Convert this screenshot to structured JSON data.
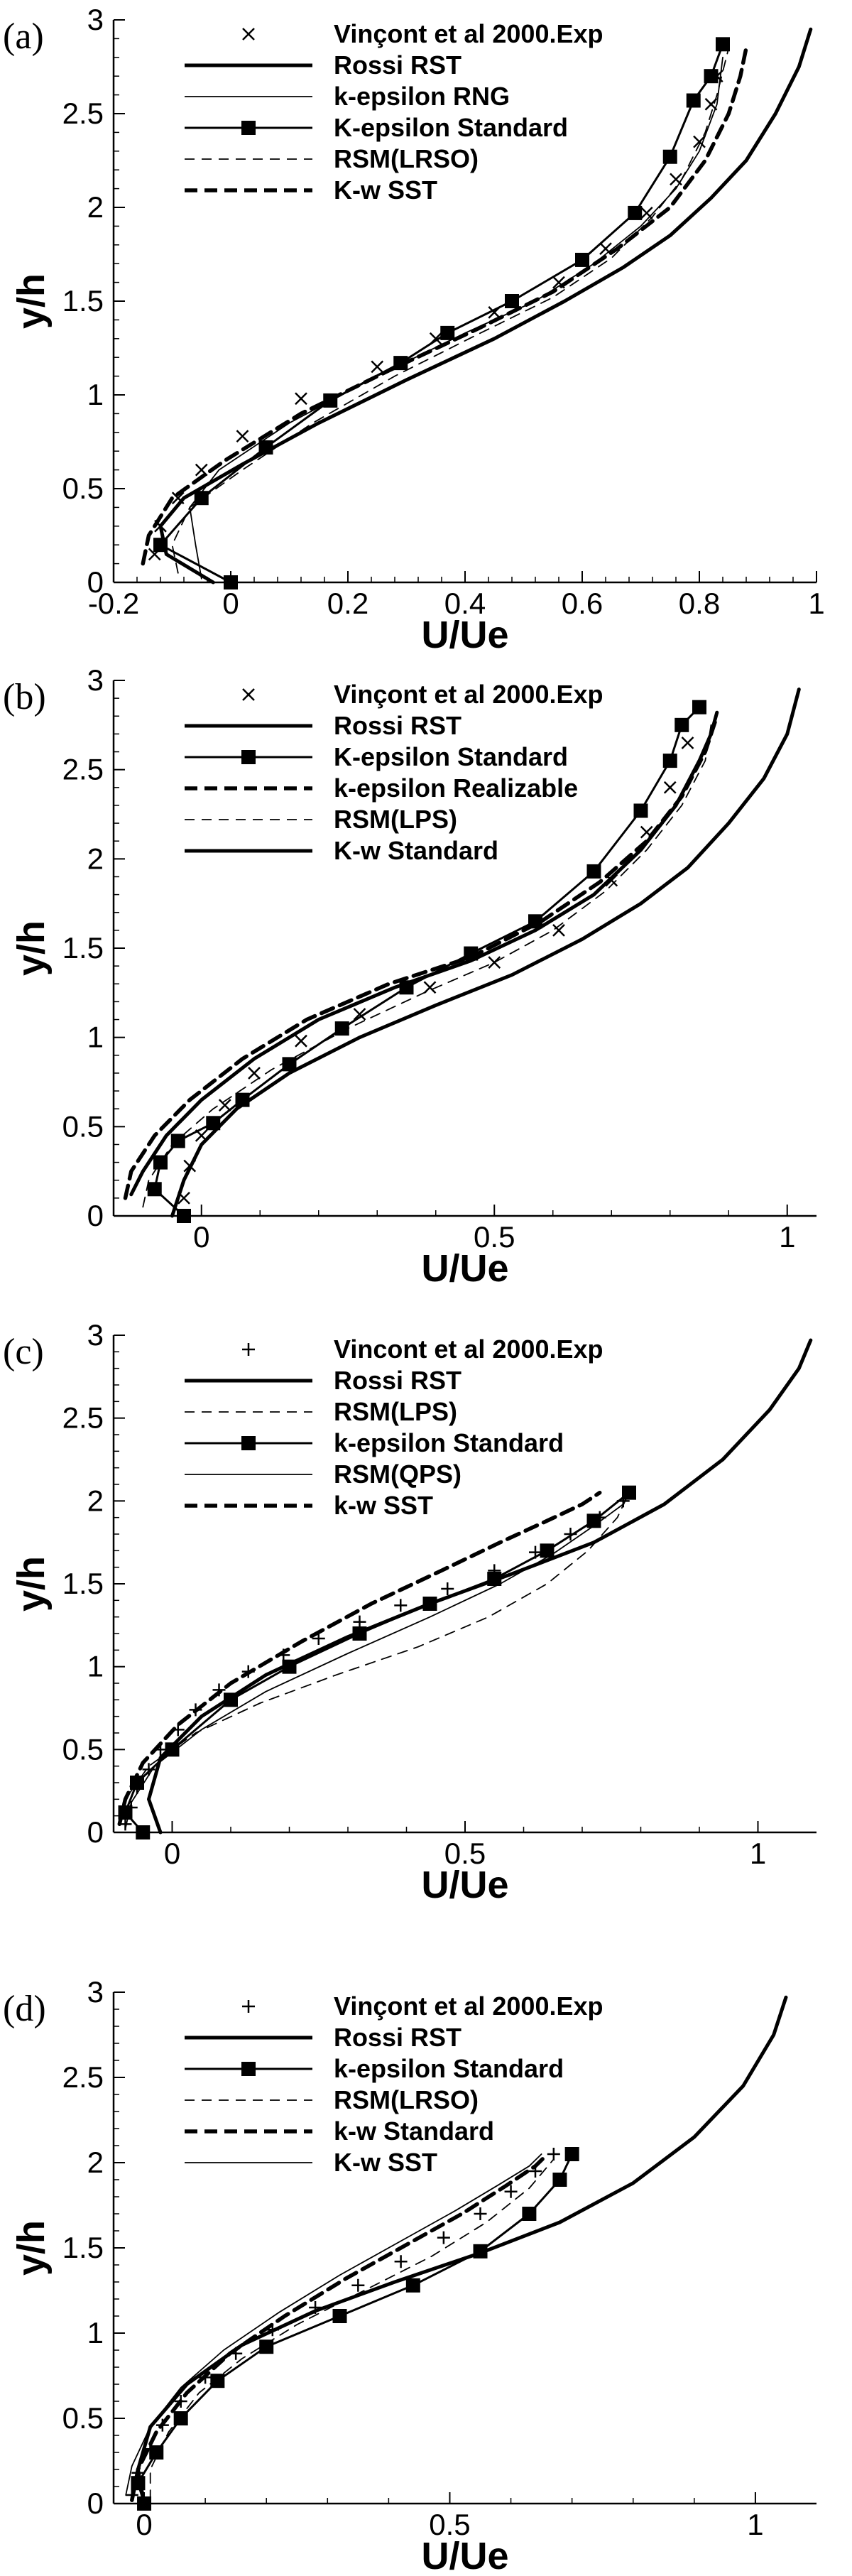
{
  "chart_data": [
    {
      "type": "line",
      "panel_label": "(a)",
      "xlabel": "U/Ue",
      "ylabel": "y/h",
      "xlim": [
        -0.2,
        1.0
      ],
      "ylim": [
        0,
        3
      ],
      "xticks": [
        -0.2,
        0,
        0.2,
        0.4,
        0.6,
        0.8,
        1
      ],
      "xtick_labels": [
        "-0.2",
        "0",
        "0.2",
        "0.4",
        "0.6",
        "0.8",
        "1"
      ],
      "yticks": [
        0,
        0.5,
        1,
        1.5,
        2,
        2.5,
        3
      ],
      "ytick_labels": [
        "0",
        "0.5",
        "1",
        "1.5",
        "2",
        "2.5",
        "3"
      ],
      "legend_position": "top",
      "series": [
        {
          "name": "Vinçont et al 2000.Exp",
          "style": "marker-x",
          "x": [
            -0.13,
            -0.12,
            -0.09,
            -0.05,
            0.02,
            0.12,
            0.25,
            0.35,
            0.45,
            0.56,
            0.64,
            0.71,
            0.76,
            0.8,
            0.82,
            0.83
          ],
          "y": [
            0.15,
            0.3,
            0.45,
            0.6,
            0.78,
            0.98,
            1.15,
            1.3,
            1.44,
            1.6,
            1.78,
            1.97,
            2.15,
            2.35,
            2.55,
            2.7
          ]
        },
        {
          "name": "Rossi RST",
          "style": "thick",
          "x": [
            -0.03,
            -0.11,
            -0.12,
            -0.08,
            0.02,
            0.15,
            0.3,
            0.45,
            0.57,
            0.67,
            0.75,
            0.82,
            0.88,
            0.93,
            0.97,
            0.99
          ],
          "y": [
            0.0,
            0.15,
            0.3,
            0.45,
            0.63,
            0.85,
            1.08,
            1.3,
            1.5,
            1.68,
            1.85,
            2.05,
            2.25,
            2.5,
            2.75,
            2.95
          ]
        },
        {
          "name": "k-epsilon RNG",
          "style": "thin",
          "x": [
            -0.05,
            -0.06,
            -0.07,
            -0.02,
            0.1,
            0.25,
            0.4,
            0.52,
            0.62,
            0.7,
            0.76,
            0.8,
            0.83,
            0.84
          ],
          "y": [
            0.02,
            0.2,
            0.4,
            0.6,
            0.85,
            1.1,
            1.33,
            1.5,
            1.7,
            1.9,
            2.1,
            2.3,
            2.55,
            2.8
          ]
        },
        {
          "name": "K-epsilon Standard",
          "style": "square",
          "x": [
            0.0,
            -0.12,
            -0.05,
            0.06,
            0.17,
            0.29,
            0.37,
            0.48,
            0.6,
            0.69,
            0.75,
            0.79,
            0.82,
            0.84
          ],
          "y": [
            0.0,
            0.2,
            0.45,
            0.72,
            0.97,
            1.17,
            1.33,
            1.5,
            1.72,
            1.97,
            2.27,
            2.57,
            2.7,
            2.87
          ]
        },
        {
          "name": "RSM(LRSO)",
          "style": "thin-dash",
          "x": [
            -0.09,
            -0.1,
            -0.07,
            0.02,
            0.14,
            0.28,
            0.42,
            0.55,
            0.65,
            0.72,
            0.77,
            0.81,
            0.83,
            0.85
          ],
          "y": [
            0.05,
            0.2,
            0.4,
            0.6,
            0.85,
            1.1,
            1.32,
            1.52,
            1.73,
            1.95,
            2.15,
            2.4,
            2.6,
            2.85
          ]
        },
        {
          "name": "K-w SST",
          "style": "thick-dash",
          "x": [
            -0.15,
            -0.14,
            -0.1,
            -0.01,
            0.12,
            0.27,
            0.42,
            0.55,
            0.66,
            0.75,
            0.81,
            0.85,
            0.87,
            0.88
          ],
          "y": [
            0.1,
            0.25,
            0.45,
            0.65,
            0.9,
            1.13,
            1.35,
            1.55,
            1.78,
            2.0,
            2.25,
            2.5,
            2.7,
            2.85
          ]
        }
      ]
    },
    {
      "type": "line",
      "panel_label": "(b)",
      "xlabel": "U/Ue",
      "ylabel": "y/h",
      "xlim": [
        -0.15,
        1.05
      ],
      "ylim": [
        0,
        3
      ],
      "xticks": [
        0,
        0.5,
        1
      ],
      "xtick_labels": [
        "0",
        "0.5",
        "1"
      ],
      "yticks": [
        0,
        0.5,
        1,
        1.5,
        2,
        2.5,
        3
      ],
      "ytick_labels": [
        "0",
        "0.5",
        "1",
        "1.5",
        "2",
        "2.5",
        "3"
      ],
      "legend_position": "top",
      "series": [
        {
          "name": "Vinçont et al 2000.Exp",
          "style": "marker-x",
          "x": [
            -0.03,
            -0.02,
            0.0,
            0.04,
            0.09,
            0.17,
            0.27,
            0.39,
            0.5,
            0.61,
            0.7,
            0.76,
            0.8,
            0.83
          ],
          "y": [
            0.1,
            0.28,
            0.45,
            0.62,
            0.8,
            0.98,
            1.13,
            1.28,
            1.42,
            1.6,
            1.88,
            2.15,
            2.4,
            2.65
          ]
        },
        {
          "name": "Rossi RST",
          "style": "thick",
          "x": [
            -0.05,
            -0.03,
            0.0,
            0.06,
            0.15,
            0.27,
            0.4,
            0.53,
            0.65,
            0.75,
            0.83,
            0.9,
            0.96,
            1.0,
            1.02
          ],
          "y": [
            0.0,
            0.2,
            0.4,
            0.6,
            0.8,
            1.0,
            1.18,
            1.35,
            1.55,
            1.75,
            1.95,
            2.2,
            2.45,
            2.7,
            2.95
          ]
        },
        {
          "name": "K-epsilon Standard",
          "style": "square",
          "x": [
            -0.03,
            -0.08,
            -0.07,
            -0.04,
            0.02,
            0.07,
            0.15,
            0.24,
            0.35,
            0.46,
            0.57,
            0.67,
            0.75,
            0.8,
            0.82,
            0.85
          ],
          "y": [
            0.0,
            0.15,
            0.3,
            0.42,
            0.52,
            0.65,
            0.85,
            1.05,
            1.28,
            1.47,
            1.65,
            1.93,
            2.27,
            2.55,
            2.75,
            2.85
          ]
        },
        {
          "name": "k-epsilon Realizable",
          "style": "thick-dash",
          "x": [
            -0.13,
            -0.12,
            -0.08,
            -0.02,
            0.07,
            0.18,
            0.32,
            0.46,
            0.58,
            0.68,
            0.76,
            0.82,
            0.86,
            0.88
          ],
          "y": [
            0.1,
            0.25,
            0.45,
            0.65,
            0.88,
            1.1,
            1.3,
            1.45,
            1.65,
            1.87,
            2.1,
            2.35,
            2.6,
            2.8
          ]
        },
        {
          "name": "RSM(LPS)",
          "style": "thin-dash",
          "x": [
            -0.1,
            -0.09,
            -0.05,
            0.02,
            0.12,
            0.25,
            0.38,
            0.5,
            0.6,
            0.69,
            0.76,
            0.82,
            0.86,
            0.87
          ],
          "y": [
            0.05,
            0.2,
            0.4,
            0.6,
            0.82,
            1.05,
            1.25,
            1.42,
            1.6,
            1.82,
            2.05,
            2.3,
            2.55,
            2.75
          ]
        },
        {
          "name": "K-w Standard",
          "style": "thick",
          "x": [
            -0.12,
            -0.1,
            -0.06,
            0.0,
            0.09,
            0.2,
            0.33,
            0.46,
            0.57,
            0.67,
            0.75,
            0.81,
            0.85,
            0.87,
            0.88
          ],
          "y": [
            0.12,
            0.25,
            0.45,
            0.65,
            0.88,
            1.1,
            1.28,
            1.43,
            1.6,
            1.8,
            2.05,
            2.3,
            2.55,
            2.7,
            2.82
          ]
        }
      ]
    },
    {
      "type": "line",
      "panel_label": "(c)",
      "xlabel": "U/Ue",
      "ylabel": "y/h",
      "xlim": [
        -0.1,
        1.1
      ],
      "ylim": [
        0,
        3
      ],
      "xticks": [
        0,
        0.5,
        1
      ],
      "xtick_labels": [
        "0",
        "0.5",
        "1"
      ],
      "yticks": [
        0,
        0.5,
        1,
        1.5,
        2,
        2.5,
        3
      ],
      "ytick_labels": [
        "0",
        "0.5",
        "1",
        "1.5",
        "2",
        "2.5",
        "3"
      ],
      "legend_position": "top",
      "series": [
        {
          "name": "Vincont et al 2000.Exp",
          "style": "marker-plus",
          "x": [
            -0.08,
            -0.07,
            -0.06,
            -0.04,
            -0.02,
            0.01,
            0.04,
            0.08,
            0.13,
            0.19,
            0.25,
            0.32,
            0.39,
            0.47,
            0.55,
            0.62,
            0.68,
            0.73,
            0.77
          ],
          "y": [
            0.05,
            0.15,
            0.27,
            0.38,
            0.5,
            0.62,
            0.74,
            0.86,
            0.97,
            1.07,
            1.17,
            1.27,
            1.37,
            1.47,
            1.58,
            1.69,
            1.8,
            1.9,
            2.0
          ]
        },
        {
          "name": "Rossi RST",
          "style": "thick",
          "x": [
            -0.02,
            -0.04,
            -0.02,
            0.05,
            0.16,
            0.3,
            0.44,
            0.58,
            0.72,
            0.84,
            0.94,
            1.02,
            1.07,
            1.09
          ],
          "y": [
            0.0,
            0.2,
            0.45,
            0.7,
            0.95,
            1.18,
            1.38,
            1.56,
            1.75,
            1.98,
            2.25,
            2.55,
            2.8,
            2.97
          ]
        },
        {
          "name": "RSM(LPS)",
          "style": "thin-dash",
          "x": [
            -0.09,
            -0.08,
            -0.04,
            0.04,
            0.15,
            0.28,
            0.42,
            0.54,
            0.64,
            0.71,
            0.76,
            0.78
          ],
          "y": [
            0.05,
            0.2,
            0.4,
            0.6,
            0.78,
            0.95,
            1.12,
            1.3,
            1.5,
            1.7,
            1.9,
            2.05
          ]
        },
        {
          "name": "k-epsilon Standard",
          "style": "square",
          "x": [
            -0.05,
            -0.08,
            -0.06,
            0.0,
            0.1,
            0.2,
            0.32,
            0.44,
            0.55,
            0.64,
            0.72,
            0.78
          ],
          "y": [
            0.0,
            0.12,
            0.3,
            0.5,
            0.8,
            1.0,
            1.2,
            1.38,
            1.53,
            1.7,
            1.88,
            2.05
          ]
        },
        {
          "name": "RSM(QPS)",
          "style": "thin",
          "x": [
            -0.08,
            -0.07,
            -0.03,
            0.05,
            0.16,
            0.3,
            0.44,
            0.56,
            0.65,
            0.72,
            0.77,
            0.78
          ],
          "y": [
            0.02,
            0.18,
            0.4,
            0.62,
            0.85,
            1.08,
            1.3,
            1.5,
            1.68,
            1.85,
            1.98,
            2.05
          ]
        },
        {
          "name": "k-w SST",
          "style": "thick-dash",
          "x": [
            -0.09,
            -0.08,
            -0.05,
            0.01,
            0.1,
            0.22,
            0.34,
            0.46,
            0.56,
            0.64,
            0.7,
            0.73
          ],
          "y": [
            0.05,
            0.2,
            0.42,
            0.65,
            0.9,
            1.15,
            1.38,
            1.58,
            1.75,
            1.88,
            1.98,
            2.05
          ]
        }
      ]
    },
    {
      "type": "line",
      "panel_label": "(d)",
      "xlabel": "U/Ue",
      "ylabel": "y/h",
      "xlim": [
        -0.05,
        1.1
      ],
      "ylim": [
        0,
        3
      ],
      "xticks": [
        0,
        0.5,
        1
      ],
      "xtick_labels": [
        "0",
        "0.5",
        "1"
      ],
      "yticks": [
        0,
        0.5,
        1,
        1.5,
        2,
        2.5,
        3
      ],
      "ytick_labels": [
        "0",
        "0.5",
        "1",
        "1.5",
        "2",
        "2.5",
        "3"
      ],
      "legend_position": "top",
      "series": [
        {
          "name": "Vinçont et al 2000.Exp",
          "style": "marker-plus",
          "x": [
            -0.02,
            -0.01,
            0.01,
            0.03,
            0.06,
            0.1,
            0.15,
            0.21,
            0.28,
            0.35,
            0.42,
            0.49,
            0.55,
            0.6,
            0.64,
            0.67
          ],
          "y": [
            0.05,
            0.18,
            0.32,
            0.46,
            0.6,
            0.74,
            0.88,
            1.02,
            1.15,
            1.28,
            1.42,
            1.56,
            1.7,
            1.83,
            1.95,
            2.05
          ]
        },
        {
          "name": "Rossi RST",
          "style": "thick",
          "x": [
            0.0,
            -0.01,
            0.01,
            0.07,
            0.16,
            0.28,
            0.41,
            0.55,
            0.68,
            0.8,
            0.9,
            0.98,
            1.03,
            1.05
          ],
          "y": [
            0.0,
            0.2,
            0.45,
            0.7,
            0.93,
            1.13,
            1.3,
            1.47,
            1.65,
            1.88,
            2.15,
            2.45,
            2.75,
            2.97
          ]
        },
        {
          "name": "k-epsilon Standard",
          "style": "square",
          "x": [
            0.0,
            -0.01,
            0.02,
            0.06,
            0.12,
            0.2,
            0.32,
            0.44,
            0.55,
            0.63,
            0.68,
            0.7
          ],
          "y": [
            0.0,
            0.12,
            0.3,
            0.5,
            0.72,
            0.92,
            1.1,
            1.28,
            1.48,
            1.7,
            1.9,
            2.05
          ]
        },
        {
          "name": "RSM(LRSO)",
          "style": "thin-dash",
          "x": [
            0.01,
            0.01,
            0.04,
            0.09,
            0.16,
            0.25,
            0.36,
            0.47,
            0.56,
            0.63,
            0.67
          ],
          "y": [
            0.02,
            0.2,
            0.42,
            0.65,
            0.85,
            1.05,
            1.25,
            1.45,
            1.65,
            1.85,
            2.02
          ]
        },
        {
          "name": "k-w Standard",
          "style": "thick-dash",
          "x": [
            -0.02,
            -0.01,
            0.02,
            0.07,
            0.14,
            0.23,
            0.33,
            0.43,
            0.52,
            0.59,
            0.64,
            0.66
          ],
          "y": [
            0.02,
            0.2,
            0.42,
            0.65,
            0.88,
            1.1,
            1.32,
            1.52,
            1.7,
            1.86,
            1.98,
            2.05
          ]
        },
        {
          "name": "K-w SST",
          "style": "thin",
          "x": [
            -0.03,
            -0.02,
            0.01,
            0.06,
            0.13,
            0.22,
            0.32,
            0.42,
            0.51,
            0.58,
            0.63,
            0.65
          ],
          "y": [
            0.05,
            0.22,
            0.45,
            0.68,
            0.9,
            1.12,
            1.34,
            1.54,
            1.72,
            1.87,
            1.98,
            2.05
          ]
        }
      ]
    }
  ]
}
